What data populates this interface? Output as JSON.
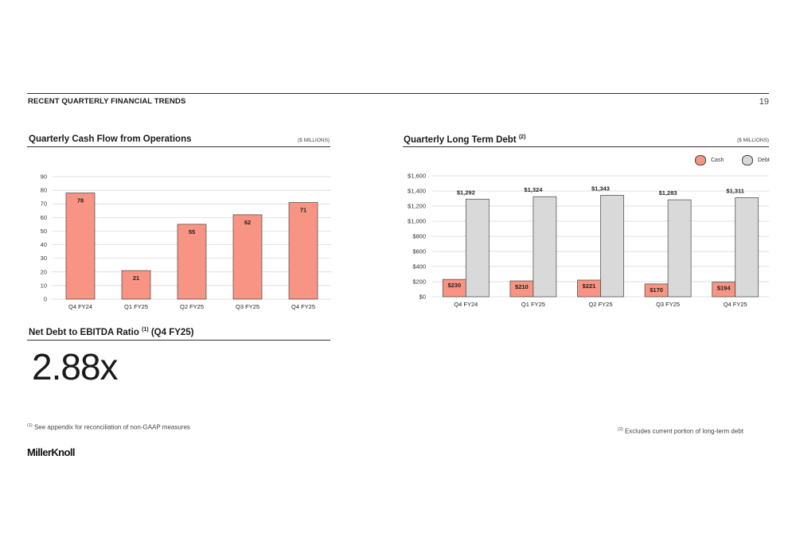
{
  "header": {
    "section_title": "RECENT QUARTERLY FINANCIAL TRENDS",
    "page_number": "19"
  },
  "colors": {
    "cash": "#f79483",
    "debt": "#d9d9d9",
    "outline": "#444444",
    "grid": "#d4d4d4"
  },
  "cashflow": {
    "title": "Quarterly Cash Flow from Operations",
    "units": "($ MILLIONS)"
  },
  "debt": {
    "title": "Quarterly Long Term Debt",
    "footnote_ref": "(2)",
    "units": "($ MILLIONS)",
    "legend_cash": "Cash",
    "legend_debt": "Debt"
  },
  "ratio": {
    "title": "Net Debt to EBITDA Ratio",
    "footnote_ref": "(1)",
    "period": "(Q4 FY25)",
    "value": "2.88x"
  },
  "footnotes": {
    "n1_ref": "(1)",
    "n1_text": "See appendix for reconciliation of non-GAAP measures",
    "n2_ref": "(2)",
    "n2_text": "Excludes current portion of long-term debt"
  },
  "logo": "MillerKnoll",
  "chart_data": [
    {
      "type": "bar",
      "title": "Quarterly Cash Flow from Operations",
      "categories": [
        "Q4 FY24",
        "Q1 FY25",
        "Q2 FY25",
        "Q3 FY25",
        "Q4 FY25"
      ],
      "values": [
        78,
        21,
        55,
        62,
        71
      ],
      "labels": [
        "78",
        "21",
        "55",
        "62",
        "71"
      ],
      "ylim": [
        0,
        90
      ],
      "yticks": [
        0,
        10,
        20,
        30,
        40,
        50,
        60,
        70,
        80,
        90
      ],
      "ytick_labels": [
        "0",
        "10",
        "20",
        "30",
        "40",
        "50",
        "60",
        "70",
        "80",
        "90"
      ],
      "grid": true
    },
    {
      "type": "bar",
      "title": "Quarterly Long Term Debt",
      "categories": [
        "Q4 FY24",
        "Q1 FY25",
        "Q2 FY25",
        "Q3 FY25",
        "Q4 FY25"
      ],
      "series": [
        {
          "name": "Cash",
          "values": [
            230,
            210,
            221,
            170,
            194
          ],
          "labels": [
            "$230",
            "$210",
            "$221",
            "$170",
            "$194"
          ]
        },
        {
          "name": "Debt",
          "values": [
            1292,
            1324,
            1343,
            1283,
            1311
          ],
          "labels": [
            "$1,292",
            "$1,324",
            "$1,343",
            "$1,283",
            "$1,311"
          ]
        }
      ],
      "ylim": [
        0,
        1600
      ],
      "yticks": [
        0,
        200,
        400,
        600,
        800,
        1000,
        1200,
        1400,
        1600
      ],
      "ytick_labels": [
        "$0",
        "$200",
        "$400",
        "$600",
        "$800",
        "$1,000",
        "$1,200",
        "$1,400",
        "$1,600"
      ],
      "legend": "top-right",
      "grid": true
    }
  ]
}
